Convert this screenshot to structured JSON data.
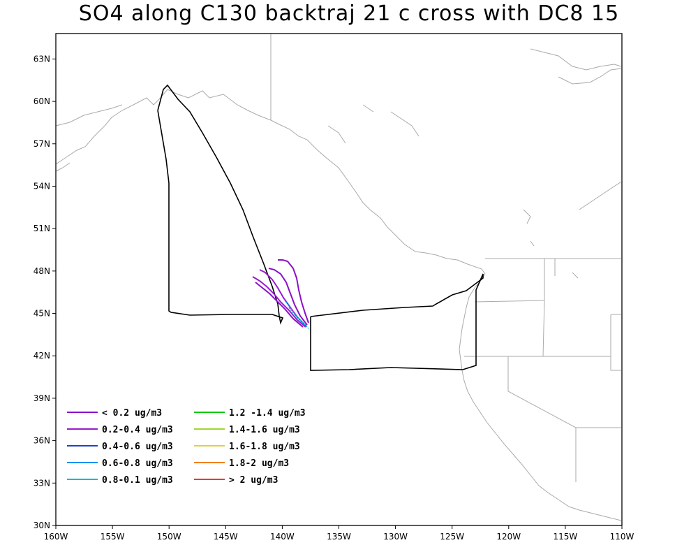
{
  "title": "SO4 along C130 backtraj 21 c cross with DC8 15",
  "map": {
    "lon_range": [
      -160,
      -110
    ],
    "lat_range": [
      30,
      64.8
    ],
    "x_ticks": [
      {
        "value": -160,
        "label": "160W"
      },
      {
        "value": -155,
        "label": "155W"
      },
      {
        "value": -150,
        "label": "150W"
      },
      {
        "value": -145,
        "label": "145W"
      },
      {
        "value": -140,
        "label": "140W"
      },
      {
        "value": -135,
        "label": "135W"
      },
      {
        "value": -130,
        "label": "130W"
      },
      {
        "value": -125,
        "label": "125W"
      },
      {
        "value": -120,
        "label": "120W"
      },
      {
        "value": -115,
        "label": "115W"
      },
      {
        "value": -110,
        "label": "110W"
      }
    ],
    "y_ticks": [
      {
        "value": 30,
        "label": "30N"
      },
      {
        "value": 33,
        "label": "33N"
      },
      {
        "value": 36,
        "label": "36N"
      },
      {
        "value": 39,
        "label": "39N"
      },
      {
        "value": 42,
        "label": "42N"
      },
      {
        "value": 45,
        "label": "45N"
      },
      {
        "value": 48,
        "label": "48N"
      },
      {
        "value": 51,
        "label": "51N"
      },
      {
        "value": 54,
        "label": "54N"
      },
      {
        "value": 57,
        "label": "57N"
      },
      {
        "value": 60,
        "label": "60N"
      },
      {
        "value": 63,
        "label": "63N"
      }
    ],
    "coastline_color": "#aaaaaa",
    "flight_track_color": "#000000"
  },
  "legend": [
    {
      "label": "< 0.2 ug/m3",
      "color": "#8b10c8"
    },
    {
      "label": "0.2-0.4 ug/m3",
      "color": "#9a1ad0"
    },
    {
      "label": "0.4-0.6 ug/m3",
      "color": "#2040d0"
    },
    {
      "label": "0.6-0.8 ug/m3",
      "color": "#1890f0"
    },
    {
      "label": "0.8-0.1 ug/m3",
      "color": "#10b8d8"
    },
    {
      "label": "1.2 -1.4 ug/m3",
      "color": "#10c810"
    },
    {
      "label": "1.4-1.6 ug/m3",
      "color": "#a0d830"
    },
    {
      "label": "1.6-1.8 ug/m3",
      "color": "#e0d040"
    },
    {
      "label": "1.8-2 ug/m3",
      "color": "#f08020"
    },
    {
      "label": "> 2 ug/m3",
      "color": "#f03828"
    }
  ]
}
